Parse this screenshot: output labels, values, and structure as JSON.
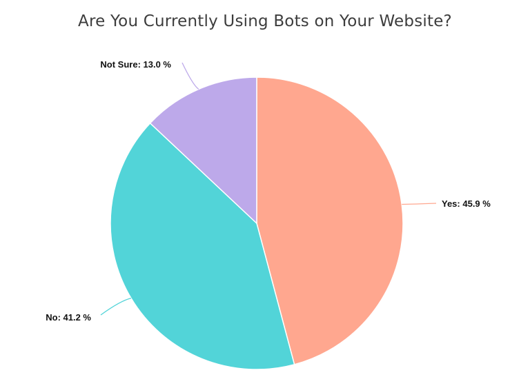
{
  "chart_data": {
    "type": "pie",
    "title": "Are You Currently Using Bots on Your Website?",
    "slices": [
      {
        "label": "Yes",
        "value": 45.9,
        "display": "Yes: 45.9 %",
        "color": "#FFA78F"
      },
      {
        "label": "No",
        "value": 41.2,
        "display": "No: 41.2 %",
        "color": "#52D4D8"
      },
      {
        "label": "Not Sure",
        "value": 13.0,
        "display": "Not Sure: 13.0 %",
        "color": "#BDA9EA"
      }
    ],
    "start_angle": "12 o'clock",
    "direction": "clockwise",
    "legend": "none",
    "labels": "outside with leader lines"
  }
}
